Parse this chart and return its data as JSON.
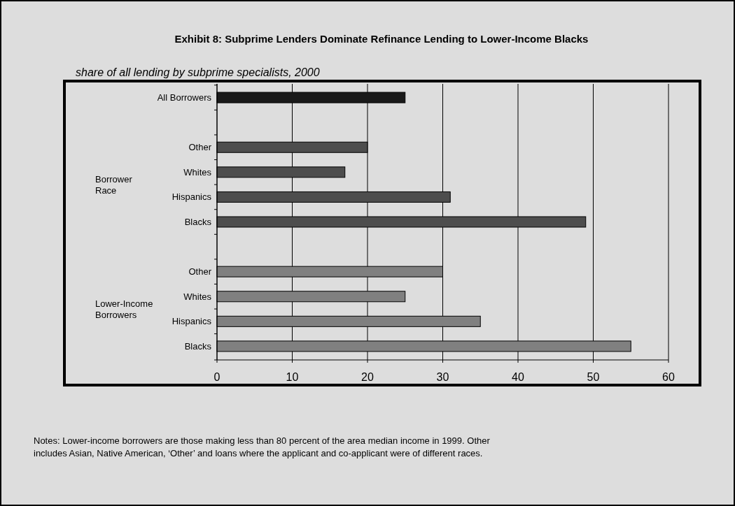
{
  "chart_data": {
    "type": "bar",
    "orientation": "horizontal",
    "title": "Exhibit 8:  Subprime Lenders Dominate Refinance Lending to Lower-Income Blacks",
    "subtitle": "share of all lending by subprime specialists, 2000",
    "categories": [
      "All Borrowers",
      null,
      "Other",
      "Whites",
      "Hispanics",
      "Blacks",
      null,
      "Other",
      "Whites",
      "Hispanics",
      "Blacks"
    ],
    "values": [
      25,
      null,
      20,
      17,
      31,
      49,
      null,
      30,
      25,
      35,
      55
    ],
    "colors": [
      "#1a1a1a",
      null,
      "#4d4d4d",
      "#4d4d4d",
      "#4d4d4d",
      "#4d4d4d",
      null,
      "#808080",
      "#808080",
      "#808080",
      "#808080"
    ],
    "xlim": [
      0,
      60
    ],
    "xticks": [
      0,
      10,
      20,
      30,
      40,
      50,
      60
    ],
    "grid": "x",
    "annotations": [
      "Borrower Race",
      "Lower-Income Borrowers",
      "Notes:  Lower-income borrowers are those making less than 80 percent of the area median income in 1999.  Other includes Asian, Native American, ‘Other’ and loans where the applicant and co-applicant were of different races."
    ]
  }
}
